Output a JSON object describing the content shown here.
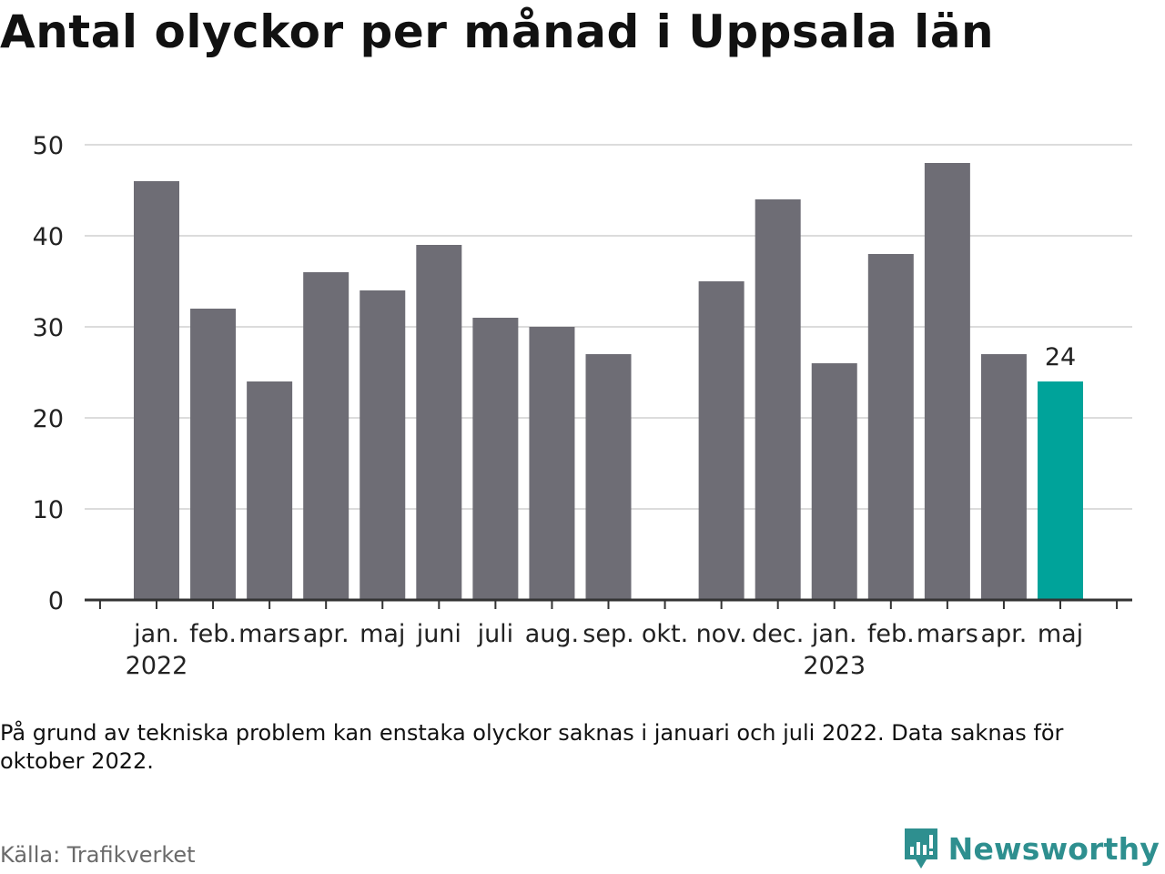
{
  "title": "Antal olyckor per månad i Uppsala län",
  "note": "På grund av tekniska problem kan enstaka olyckor saknas i januari och juli 2022. Data saknas för oktober 2022.",
  "source": "Källa: Trafikverket",
  "brand": {
    "name": "Newsworthy",
    "icon": "newsworthy-logo-icon",
    "color": "#2e8f8f"
  },
  "chart_data": {
    "type": "bar",
    "categories": [
      "jan.",
      "feb.",
      "mars",
      "apr.",
      "maj",
      "juni",
      "juli",
      "aug.",
      "sep.",
      "okt.",
      "nov.",
      "dec.",
      "jan.",
      "feb.",
      "mars",
      "apr.",
      "maj"
    ],
    "year_labels": [
      {
        "index": 0,
        "label": "2022"
      },
      {
        "index": 12,
        "label": "2023"
      }
    ],
    "values": [
      46,
      32,
      24,
      36,
      34,
      39,
      31,
      30,
      27,
      null,
      35,
      44,
      26,
      38,
      48,
      27,
      24
    ],
    "highlight_index": 16,
    "highlight_label": "24",
    "ylim": [
      0,
      50
    ],
    "yticks": [
      0,
      10,
      20,
      30,
      40,
      50
    ],
    "colors": {
      "bar": "#6e6d75",
      "highlight": "#00a39a",
      "grid": "#dcdcdc",
      "axis": "#333333"
    },
    "grid": true,
    "xlabel": "",
    "ylabel": ""
  }
}
